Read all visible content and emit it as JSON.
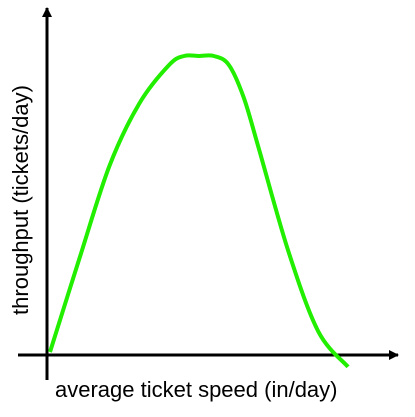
{
  "chart_data": {
    "type": "line",
    "title": "",
    "xlabel": "average ticket speed (in/day)",
    "ylabel": "throughput (tickets/day)",
    "xlim": [
      0,
      100
    ],
    "ylim": [
      0,
      100
    ],
    "axis_ticks": false,
    "grid": false,
    "legend": "none",
    "series": [
      {
        "color": "#22ee00",
        "x": [
          0,
          10,
          20,
          30,
          40,
          45,
          50,
          55,
          60,
          65,
          70,
          80,
          90,
          100
        ],
        "y": [
          0,
          32,
          63,
          84,
          97,
          100,
          100,
          100,
          97,
          86,
          69,
          34,
          7,
          -5
        ]
      }
    ]
  }
}
